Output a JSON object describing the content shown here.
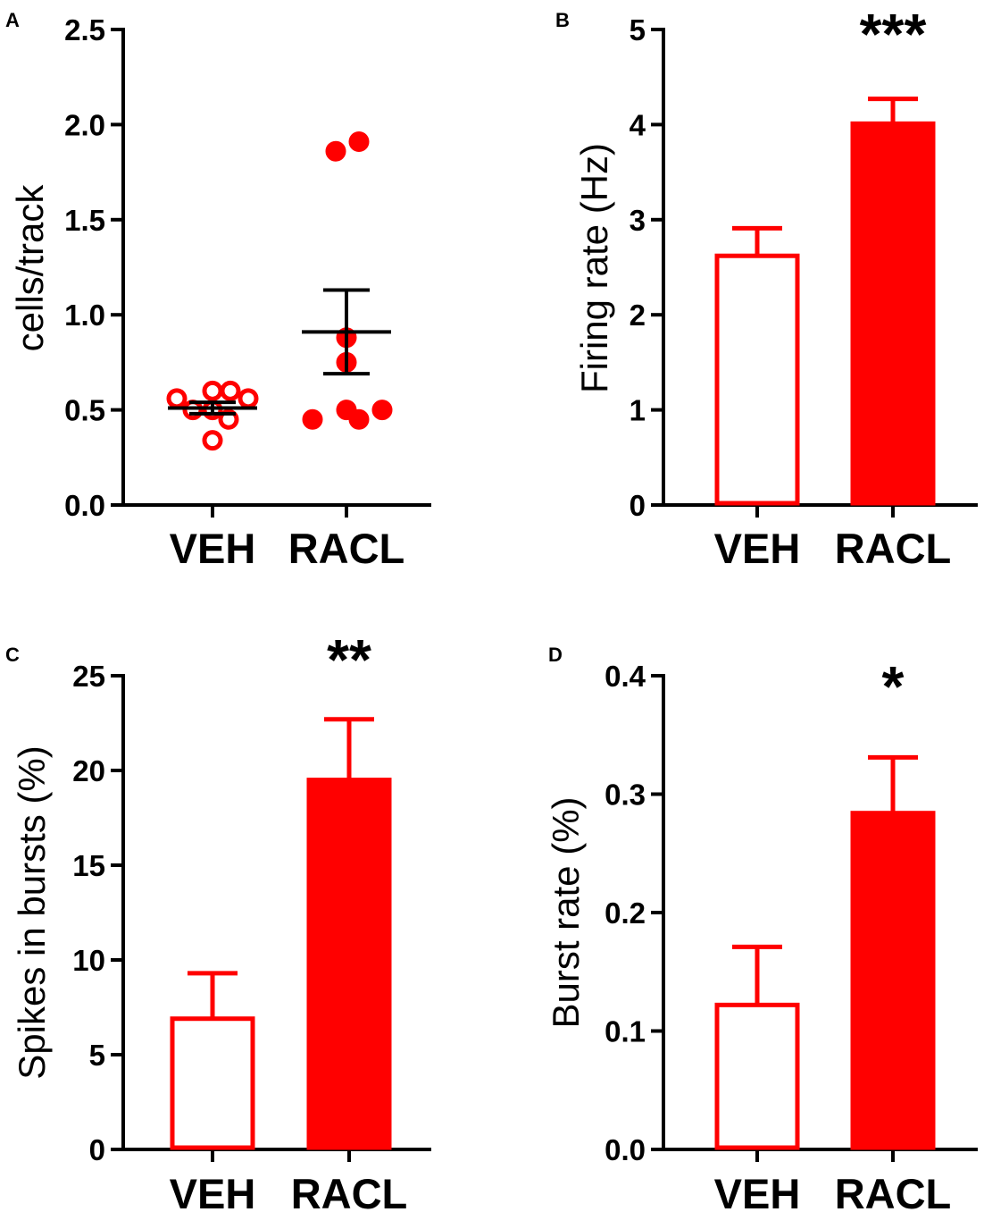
{
  "chart_data": [
    {
      "panel": "A",
      "type": "scatter",
      "categories": [
        "VEH",
        "RACL"
      ],
      "ylabel": "cells/track",
      "ylim": [
        0,
        2.5
      ],
      "yticks": [
        "0.0",
        "0.5",
        "1.0",
        "1.5",
        "2.0",
        "2.5"
      ],
      "series": [
        {
          "name": "VEH",
          "values": [
            0.56,
            0.5,
            0.6,
            0.6,
            0.5,
            0.56,
            0.45,
            0.34
          ],
          "mean": 0.51,
          "sem": 0.03,
          "color": "#ff0000",
          "filled": false
        },
        {
          "name": "RACL",
          "values": [
            1.86,
            1.91,
            0.88,
            0.75,
            0.45,
            0.5,
            0.45,
            0.5
          ],
          "mean": 0.91,
          "sem": 0.22,
          "color": "#ff0000",
          "filled": true
        }
      ],
      "significance": ""
    },
    {
      "panel": "B",
      "type": "bar",
      "categories": [
        "VEH",
        "RACL"
      ],
      "ylabel": "Firing rate (Hz)",
      "ylim": [
        0,
        5
      ],
      "yticks": [
        "0",
        "1",
        "2",
        "3",
        "4",
        "5"
      ],
      "values": [
        2.62,
        4.01
      ],
      "errors": [
        0.29,
        0.26
      ],
      "fills": [
        "#ffffff",
        "#ff0000"
      ],
      "significance": "***"
    },
    {
      "panel": "C",
      "type": "bar",
      "categories": [
        "VEH",
        "RACL"
      ],
      "ylabel": "Spikes in bursts (%)",
      "ylim": [
        0,
        25
      ],
      "yticks": [
        "0",
        "5",
        "10",
        "15",
        "20",
        "25"
      ],
      "values": [
        6.9,
        19.5
      ],
      "errors": [
        2.4,
        3.2
      ],
      "fills": [
        "#ffffff",
        "#ff0000"
      ],
      "significance": "**"
    },
    {
      "panel": "D",
      "type": "bar",
      "categories": [
        "VEH",
        "RACL"
      ],
      "ylabel": "Burst rate (%)",
      "ylim": [
        0,
        0.4
      ],
      "yticks": [
        "0.0",
        "0.1",
        "0.2",
        "0.3",
        "0.4"
      ],
      "values": [
        0.122,
        0.284
      ],
      "errors": [
        0.049,
        0.047
      ],
      "fills": [
        "#ffffff",
        "#ff0000"
      ],
      "significance": "*"
    }
  ],
  "colors": {
    "accent": "#ff0000",
    "axis": "#000000"
  }
}
